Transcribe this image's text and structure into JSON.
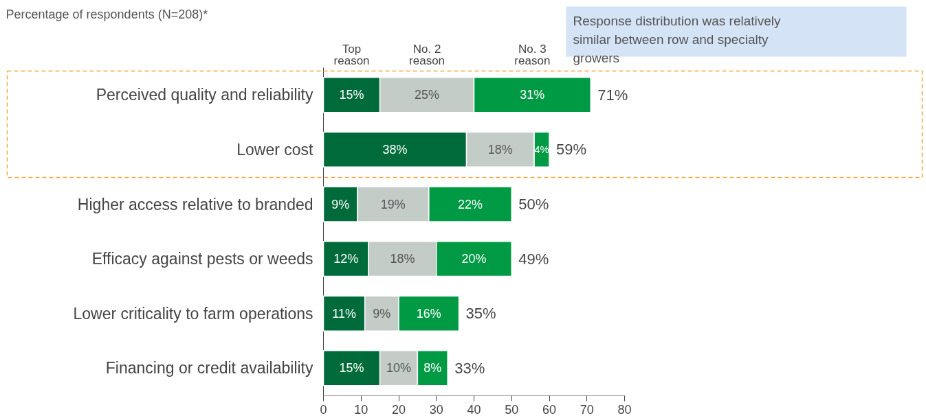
{
  "chart_data": {
    "type": "bar",
    "orientation": "horizontal",
    "stacked": true,
    "title": "Percentage of respondents (N=208)*",
    "categories": [
      "Perceived quality and reliability",
      "Lower cost",
      "Higher access relative to branded",
      "Efficacy against pests or weeds",
      "Lower criticality to farm operations",
      "Financing or credit availability"
    ],
    "series": [
      {
        "name": "Top reason",
        "color": "#006b3a",
        "values": [
          15,
          38,
          9,
          12,
          11,
          15
        ],
        "value_labels": [
          "15%",
          "38%",
          "9%",
          "12%",
          "11%",
          "15%"
        ]
      },
      {
        "name": "No. 2 reason",
        "color": "#c4ccc8",
        "values": [
          25,
          18,
          19,
          18,
          9,
          10
        ],
        "value_labels": [
          "25%",
          "18%",
          "19%",
          "18%",
          "9%",
          "10%"
        ]
      },
      {
        "name": "No. 3 reason",
        "color": "#009a44",
        "values": [
          31,
          4,
          22,
          20,
          16,
          8
        ],
        "value_labels": [
          "31%",
          "4%",
          "22%",
          "20%",
          "16%",
          "8%"
        ]
      }
    ],
    "totals": [
      "71%",
      "59%",
      "50%",
      "49%",
      "35%",
      "33%"
    ],
    "xlim": [
      0,
      80
    ],
    "xticks": [
      0,
      10,
      20,
      30,
      40,
      50,
      60,
      70,
      80
    ],
    "grid": false,
    "annotations": [
      "Response distribution was relatively similar between row and specialty growers"
    ]
  }
}
